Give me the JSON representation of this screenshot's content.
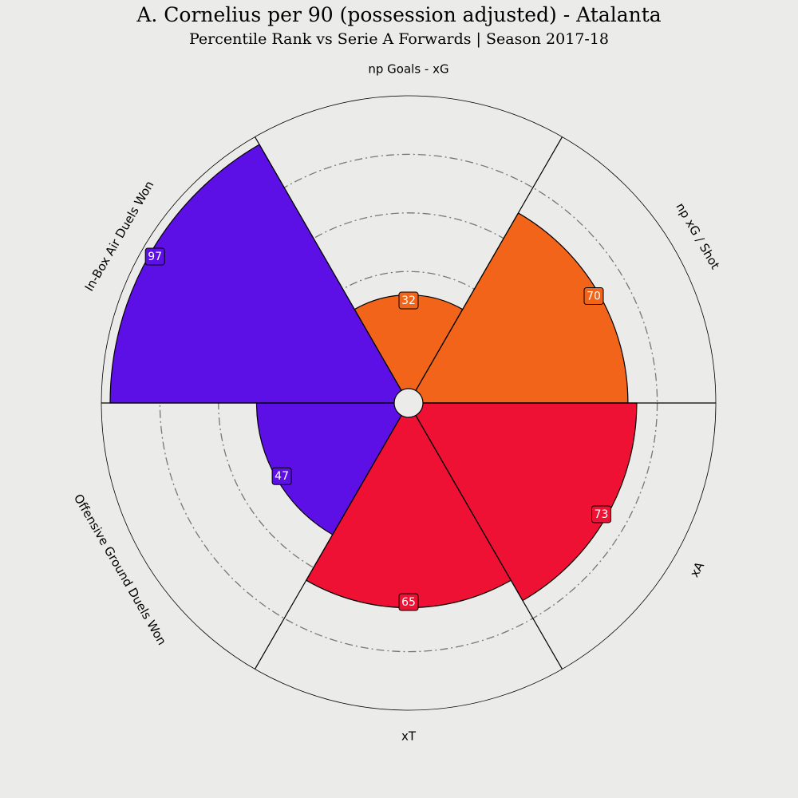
{
  "header": {
    "title": "A. Cornelius per 90 (possession adjusted) - Atalanta",
    "subtitle": "Percentile Rank vs Serie A Forwards | Season 2017-18"
  },
  "chart_data": {
    "type": "pizza",
    "rlim": [
      0,
      100
    ],
    "grid_rings": [
      20,
      40,
      60,
      80
    ],
    "background_color": "#ebebe9",
    "slice_edge_color": "#000000",
    "grid_color": "#777777",
    "start_angle_deg": 90,
    "direction": "clockwise",
    "parameters": [
      {
        "label": "np Goals - xG",
        "value": 32,
        "color": "#f26419"
      },
      {
        "label": "np xG / Shot",
        "value": 70,
        "color": "#f26419"
      },
      {
        "label": "xA",
        "value": 73,
        "color": "#ee1133"
      },
      {
        "label": "xT",
        "value": 65,
        "color": "#ee1133"
      },
      {
        "label": "Offensive Ground Duels Won",
        "value": 47,
        "color": "#5c10e5"
      },
      {
        "label": "In-Box Air Duels Won",
        "value": 97,
        "color": "#5c10e5"
      }
    ]
  }
}
